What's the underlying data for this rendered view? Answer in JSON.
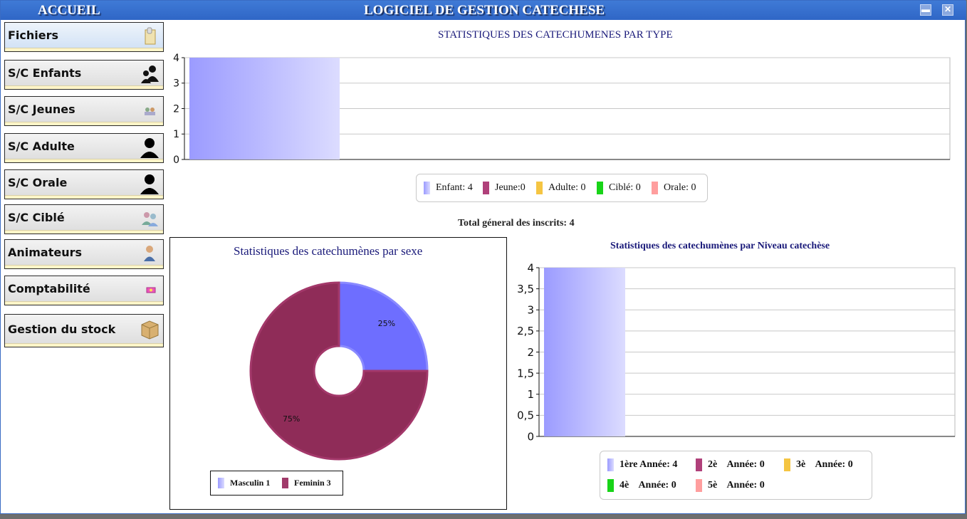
{
  "window": {
    "home_label": "ACCUEIL",
    "title": "LOGICIEL DE GESTION CATECHESE",
    "minimize_glyph": "▬",
    "close_glyph": "✕"
  },
  "sidebar": {
    "items": [
      {
        "label": "Fichiers",
        "icon": "folder-icon",
        "active": true
      },
      {
        "label": "S/C Enfants",
        "icon": "children-icon"
      },
      {
        "label": "S/C Jeunes",
        "icon": "youth-icon"
      },
      {
        "label": "S/C Adulte",
        "icon": "adult-person-icon"
      },
      {
        "label": "S/C Orale",
        "icon": "person-silhouette-icon"
      },
      {
        "label": "S/C Ciblé",
        "icon": "group-icon"
      },
      {
        "label": "Animateurs",
        "icon": "animator-person-icon"
      },
      {
        "label": "Comptabilité",
        "icon": "money-icon"
      },
      {
        "label": "Gestion du stock",
        "icon": "box-icon"
      }
    ]
  },
  "total_label": "Total géneral des inscrits: 4",
  "chart_data": [
    {
      "type": "bar",
      "title": "STATISTIQUES DES CATECHUMENES PAR TYPE",
      "categories": [
        "Enfant",
        "Jeune",
        "Adulte",
        "Ciblé",
        "Orale"
      ],
      "values": [
        4,
        0,
        0,
        0,
        0
      ],
      "legend": [
        "Enfant: 4",
        "Jeune:0",
        "Adulte: 0",
        "Ciblé: 0",
        "Orale: 0"
      ],
      "ylim": [
        0,
        4
      ],
      "yticks": [
        "0",
        "1",
        "2",
        "3",
        "4"
      ],
      "grid": true,
      "colors": [
        "#9b9bff",
        "#b0407a",
        "#f5c542",
        "#18d418",
        "#ff9e9e"
      ]
    },
    {
      "type": "pie",
      "style": "donut",
      "title": "Statistiques des catechumènes par sexe",
      "categories": [
        "Masculin",
        "Feminin"
      ],
      "values": [
        1,
        3
      ],
      "labels": [
        "25%",
        "75%"
      ],
      "legend": [
        "Masculin 1",
        "Feminin 3"
      ],
      "colors": [
        "#6e6eff",
        "#8f2c58"
      ]
    },
    {
      "type": "bar",
      "title": "Statistiques des catechumènes par Niveau catechèse",
      "categories": [
        "1ère Année",
        "2è Année",
        "3è Année",
        "4è Année",
        "5è Année"
      ],
      "values": [
        4,
        0,
        0,
        0,
        0
      ],
      "legend": [
        "1ère Année: 4",
        "2è    Année: 0",
        "3è    Année: 0",
        "4è    Année: 0",
        "5è    Année: 0"
      ],
      "ylim": [
        0,
        4
      ],
      "yticks": [
        "0",
        "0,5",
        "1",
        "1,5",
        "2",
        "2,5",
        "3",
        "3,5",
        "4"
      ],
      "grid": true,
      "colors": [
        "#9b9bff",
        "#b0407a",
        "#f5c542",
        "#18d418",
        "#ff9e9e"
      ]
    }
  ]
}
